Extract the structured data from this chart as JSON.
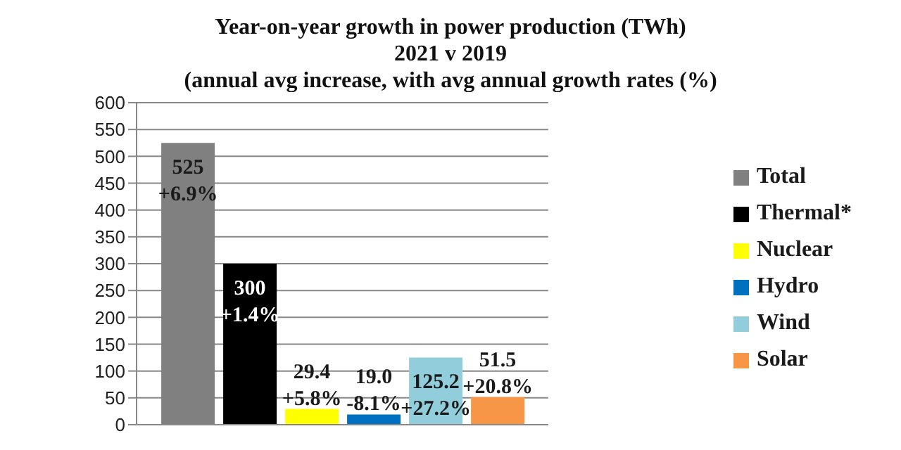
{
  "chart_data": {
    "type": "bar",
    "title": "Year-on-year growth in power production (TWh)",
    "subtitle": "2021 v 2019\n(annual avg increase, with avg annual growth rates (%)",
    "categories": [
      null
    ],
    "series": [
      {
        "name": "Total",
        "color": "#808080",
        "values": [
          525
        ],
        "value_labels": [
          "525\n+6.9%"
        ]
      },
      {
        "name": "Thermal*",
        "color": "#000000",
        "values": [
          300
        ],
        "value_labels": [
          "300\n+1.4%"
        ]
      },
      {
        "name": "Nuclear",
        "color": "#ffff00",
        "values": [
          29.4
        ],
        "value_labels": [
          "29.4\n+5.8%"
        ]
      },
      {
        "name": "Hydro",
        "color": "#0070c0",
        "values": [
          19.0
        ],
        "value_labels": [
          "19.0\n-8.1%"
        ]
      },
      {
        "name": "Wind",
        "color": "#92cddc",
        "values": [
          125.2
        ],
        "value_labels": [
          "125.2\n+27.2%"
        ]
      },
      {
        "name": "Solar",
        "color": "#f79646",
        "values": [
          51.5
        ],
        "value_labels": [
          "51.5\n+20.8%"
        ]
      }
    ],
    "ylim": [
      0,
      600
    ],
    "yticks": [
      0,
      50,
      100,
      150,
      200,
      250,
      300,
      350,
      400,
      450,
      500,
      550,
      600
    ],
    "grid": "y",
    "legend": "right"
  }
}
